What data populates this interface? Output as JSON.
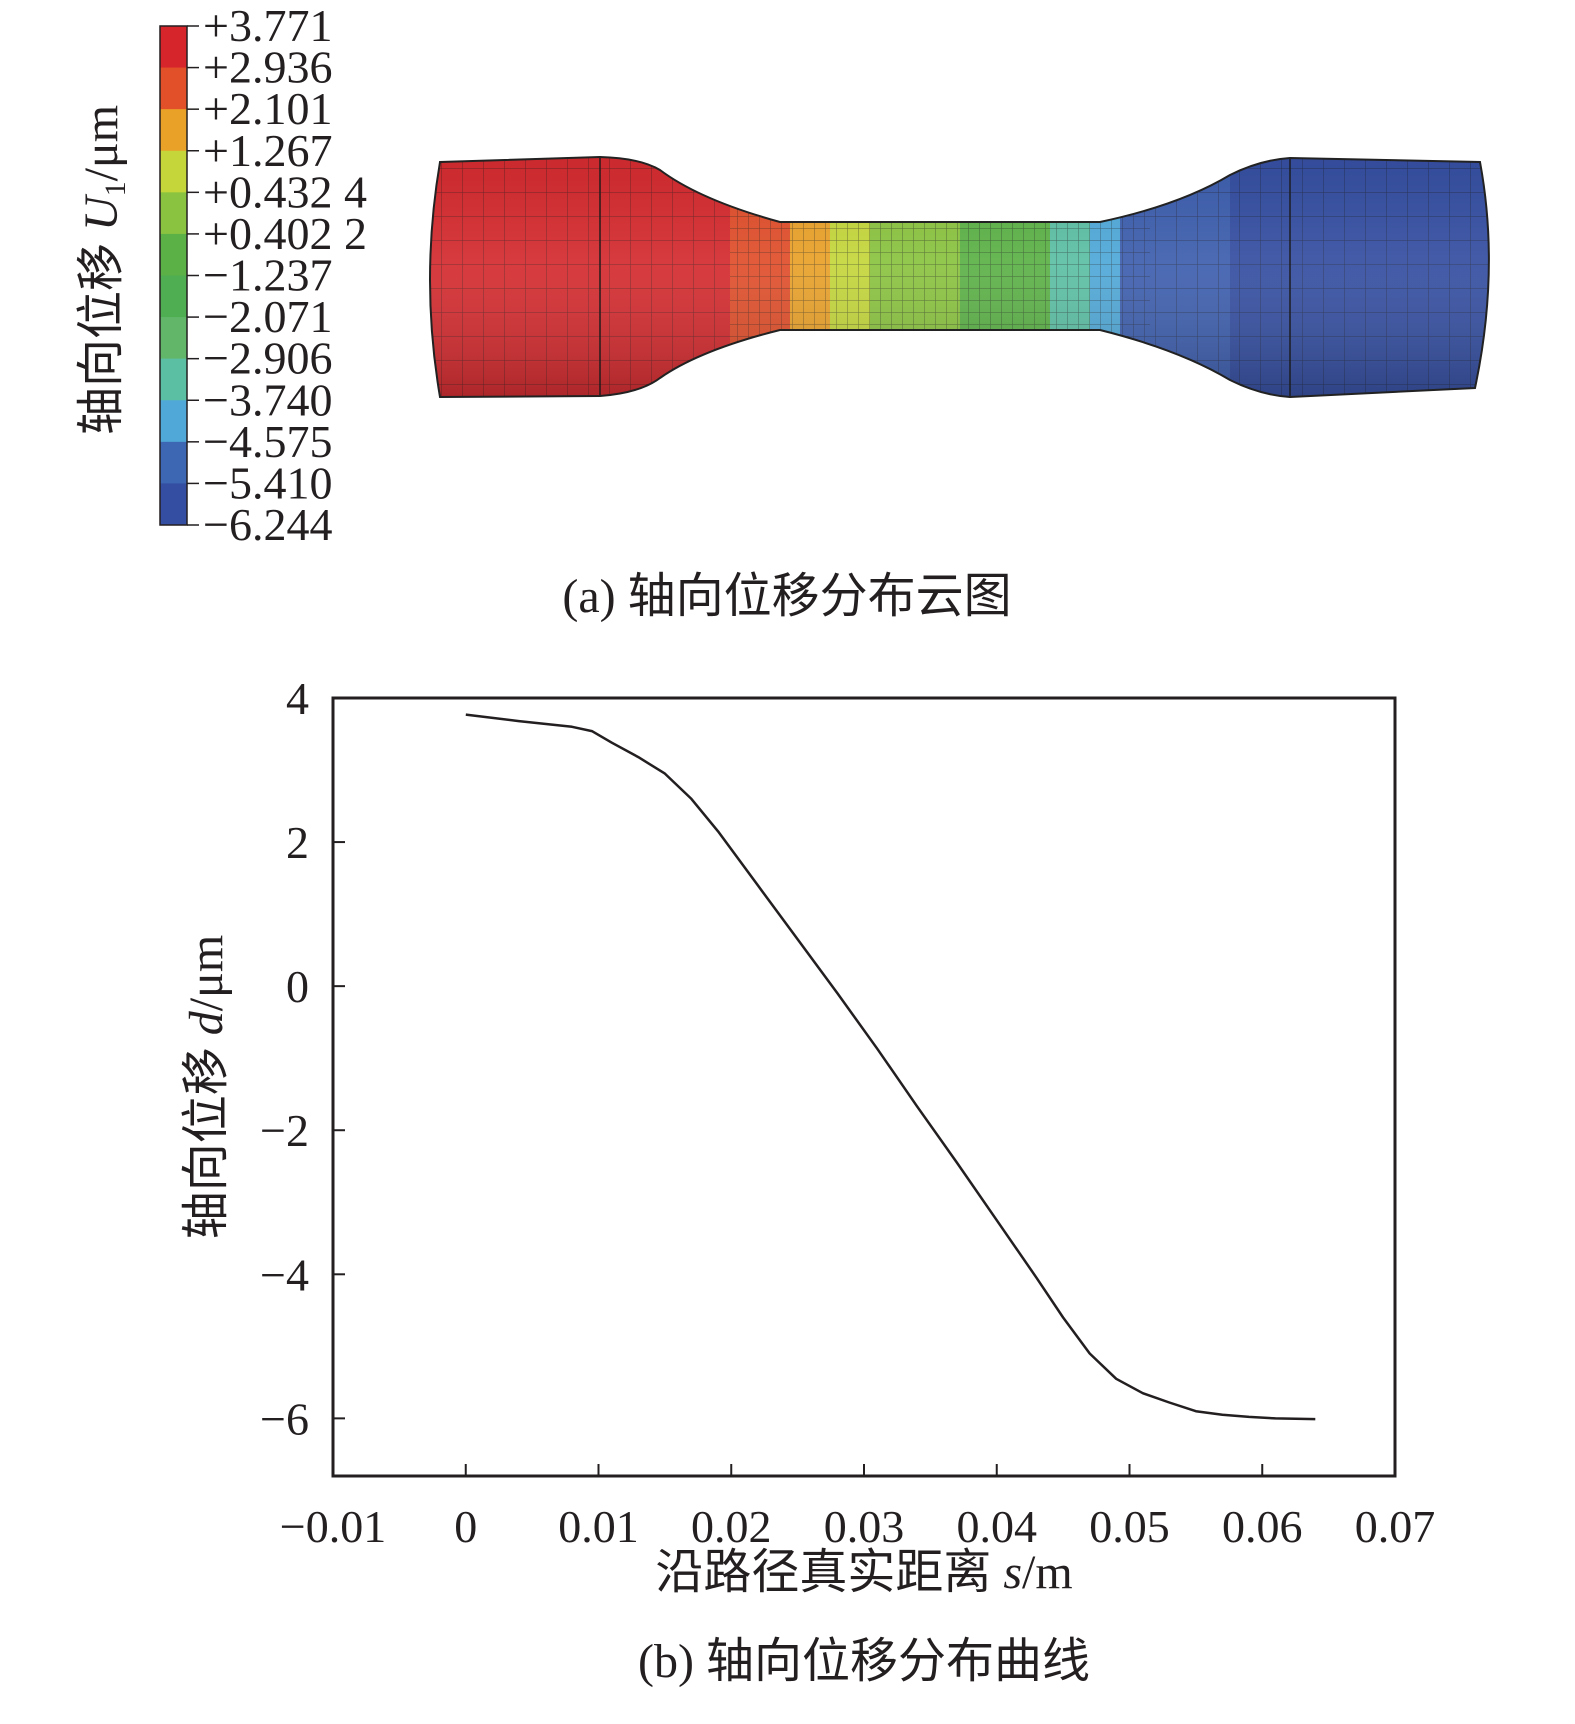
{
  "chart_data": [
    {
      "type": "heatmap",
      "colorbar": {
        "title": "轴向位移 U₁/μm",
        "title_main": "轴向位移 ",
        "title_symbol": "U",
        "title_sub": "1",
        "title_unit": "/μm",
        "levels": [
          "+3.771",
          "+2.936",
          "+2.101",
          "+1.267",
          "+0.432 4",
          "+0.402 2",
          "−1.237",
          "−2.071",
          "−2.906",
          "−3.740",
          "−4.575",
          "−5.410",
          "−6.244"
        ],
        "colors": [
          "#d7262b",
          "#e2502a",
          "#e9a128",
          "#c4d63a",
          "#8ac33f",
          "#5bb146",
          "#4fae51",
          "#62b66a",
          "#5bbfa4",
          "#4fa8d8",
          "#3d67b3",
          "#344ea1"
        ]
      },
      "caption": "(a) 轴向位移分布云图",
      "specimen_bands": [
        {
          "region": "left-grip",
          "color": "#d42a2e"
        },
        {
          "region": "left-taper",
          "color": "#e04e2a"
        },
        {
          "region": "gauge-1",
          "color": "#e9a128"
        },
        {
          "region": "gauge-2",
          "color": "#c4d63a"
        },
        {
          "region": "gauge-3",
          "color": "#8ac33f"
        },
        {
          "region": "gauge-4",
          "color": "#5bb146"
        },
        {
          "region": "gauge-5",
          "color": "#5bbfa4"
        },
        {
          "region": "gauge-6",
          "color": "#4fa8d8"
        },
        {
          "region": "right-taper",
          "color": "#3d5eae"
        },
        {
          "region": "right-grip",
          "color": "#344ea1"
        }
      ]
    },
    {
      "type": "line",
      "xlabel": "沿路径真实距离 s/m",
      "xlabel_main": "沿路径真实距离 ",
      "xlabel_symbol": "s",
      "xlabel_unit": "/m",
      "ylabel": "轴向位移 d/μm",
      "ylabel_main": "轴向位移 ",
      "ylabel_symbol": "d",
      "ylabel_unit": "/μm",
      "xlim": [
        -0.01,
        0.07
      ],
      "ylim": [
        -6.8,
        4
      ],
      "xticks": [
        -0.01,
        0,
        0.01,
        0.02,
        0.03,
        0.04,
        0.05,
        0.06,
        0.07
      ],
      "xtick_labels": [
        "−0.01",
        "0",
        "0.01",
        "0.02",
        "0.03",
        "0.04",
        "0.05",
        "0.06",
        "0.07"
      ],
      "yticks": [
        4,
        2,
        0,
        -2,
        -4,
        -6
      ],
      "ytick_labels": [
        "4",
        "2",
        "0",
        "−2",
        "−4",
        "−6"
      ],
      "caption": "(b) 轴向位移分布曲线",
      "series": [
        {
          "x": [
            0,
            0.004,
            0.008,
            0.0095,
            0.011,
            0.013,
            0.015,
            0.017,
            0.019,
            0.022,
            0.025,
            0.028,
            0.031,
            0.034,
            0.037,
            0.04,
            0.043,
            0.045,
            0.047,
            0.049,
            0.051,
            0.053,
            0.055,
            0.057,
            0.059,
            0.061,
            0.064
          ],
          "y": [
            3.77,
            3.68,
            3.6,
            3.54,
            3.38,
            3.18,
            2.95,
            2.6,
            2.15,
            1.4,
            0.65,
            -0.1,
            -0.87,
            -1.67,
            -2.45,
            -3.25,
            -4.05,
            -4.6,
            -5.1,
            -5.45,
            -5.65,
            -5.78,
            -5.9,
            -5.95,
            -5.98,
            -6.0,
            -6.01
          ]
        }
      ]
    }
  ]
}
